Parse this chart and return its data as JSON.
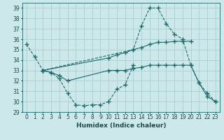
{
  "xlabel": "Humidex (Indice chaleur)",
  "bg_color": "#cce8ea",
  "grid_color": "#aacfd2",
  "line_color": "#1a6b6b",
  "xlim": [
    -0.5,
    23.5
  ],
  "ylim": [
    29,
    39.5
  ],
  "yticks": [
    29,
    30,
    31,
    32,
    33,
    34,
    35,
    36,
    37,
    38,
    39
  ],
  "xticks": [
    0,
    1,
    2,
    3,
    4,
    5,
    6,
    7,
    8,
    9,
    10,
    11,
    12,
    13,
    14,
    15,
    16,
    17,
    18,
    19,
    20,
    21,
    22,
    23
  ],
  "series": [
    {
      "x": [
        0,
        1,
        2,
        3,
        4,
        5,
        6,
        7,
        8,
        9,
        10,
        11,
        12,
        13
      ],
      "y": [
        35.5,
        34.3,
        33.0,
        32.8,
        32.2,
        30.8,
        29.7,
        29.6,
        29.7,
        29.7,
        30.0,
        31.2,
        31.6,
        33.5
      ],
      "style": "--",
      "marker": "+"
    },
    {
      "x": [
        2,
        3,
        4,
        5,
        10,
        11,
        12,
        13,
        14,
        15,
        16,
        17,
        18,
        19,
        20,
        21,
        22,
        23
      ],
      "y": [
        33.0,
        32.8,
        32.5,
        32.0,
        33.0,
        33.0,
        33.0,
        33.2,
        33.3,
        33.5,
        33.5,
        33.5,
        33.5,
        33.5,
        33.5,
        31.8,
        30.5,
        30.0
      ],
      "style": "-",
      "marker": "+"
    },
    {
      "x": [
        2,
        10,
        11,
        12,
        13,
        14,
        15,
        16,
        17,
        18,
        19,
        20
      ],
      "y": [
        33.0,
        34.2,
        34.5,
        34.7,
        35.0,
        35.2,
        35.5,
        35.7,
        35.7,
        35.8,
        35.8,
        35.8
      ],
      "style": "-",
      "marker": "+"
    },
    {
      "x": [
        2,
        13,
        14,
        15,
        16,
        17,
        18,
        19,
        20,
        21,
        22,
        23
      ],
      "y": [
        33.0,
        35.0,
        37.3,
        39.0,
        39.0,
        37.5,
        36.5,
        36.0,
        33.5,
        31.8,
        30.8,
        30.0
      ],
      "style": "--",
      "marker": "+"
    }
  ]
}
